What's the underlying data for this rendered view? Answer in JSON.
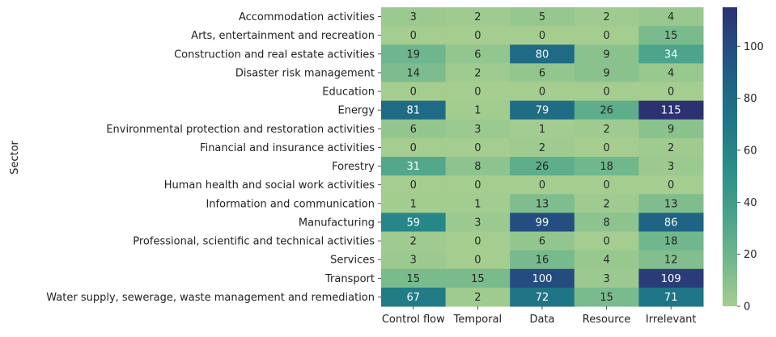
{
  "chart_data": {
    "type": "heatmap",
    "title": "",
    "xlabel": "",
    "ylabel": "Sector",
    "x_categories": [
      "Control flow",
      "Temporal",
      "Data",
      "Resource",
      "Irrelevant"
    ],
    "y_categories": [
      "Accommodation activities",
      "Arts, entertainment and recreation",
      "Construction and real estate activities",
      "Disaster risk management",
      "Education",
      "Energy",
      "Environmental protection and restoration activities",
      "Financial and insurance activities",
      "Forestry",
      "Human health and social work activities",
      "Information and communication",
      "Manufacturing",
      "Professional, scientific and technical activities",
      "Services",
      "Transport",
      "Water supply, sewerage, waste management and remediation"
    ],
    "values": [
      [
        3,
        2,
        5,
        2,
        4
      ],
      [
        0,
        0,
        0,
        0,
        15
      ],
      [
        19,
        6,
        80,
        9,
        34
      ],
      [
        14,
        2,
        6,
        9,
        4
      ],
      [
        0,
        0,
        0,
        0,
        0
      ],
      [
        81,
        1,
        79,
        26,
        115
      ],
      [
        6,
        3,
        1,
        2,
        9
      ],
      [
        0,
        0,
        2,
        0,
        2
      ],
      [
        31,
        8,
        26,
        18,
        3
      ],
      [
        0,
        0,
        0,
        0,
        0
      ],
      [
        1,
        1,
        13,
        2,
        13
      ],
      [
        59,
        3,
        99,
        8,
        86
      ],
      [
        2,
        0,
        6,
        0,
        18
      ],
      [
        3,
        0,
        16,
        4,
        12
      ],
      [
        15,
        15,
        100,
        3,
        109
      ],
      [
        67,
        2,
        72,
        15,
        71
      ]
    ],
    "colorbar": {
      "range": [
        0,
        115
      ],
      "ticks": [
        "0",
        "20",
        "40",
        "60",
        "80",
        "100"
      ],
      "colormap": "crest",
      "color_low": "#a5cd90",
      "color_high": "#2c3172"
    }
  }
}
